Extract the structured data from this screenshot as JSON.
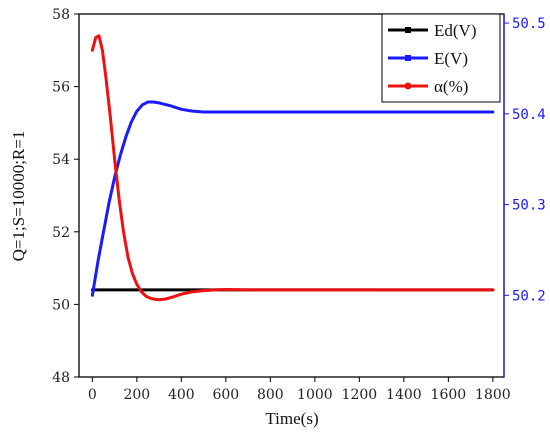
{
  "chart_data": {
    "type": "line",
    "xlabel": "Time(s)",
    "ylabel": "Q=1;S=10000;R=1",
    "xlim": [
      -60,
      1850
    ],
    "xticks": [
      0,
      200,
      400,
      600,
      800,
      1000,
      1200,
      1400,
      1600,
      1800
    ],
    "ylim_left": [
      48,
      58
    ],
    "yticks_left": [
      48,
      50,
      52,
      54,
      56,
      58
    ],
    "ylim_right": [
      50.11,
      50.51
    ],
    "yticks_right": [
      50.2,
      50.3,
      50.4,
      50.5
    ],
    "right_axis_color": "#1a1aff",
    "grid": false,
    "legend_position": "top-right",
    "series": [
      {
        "name": "Ed(V)",
        "color": "#000000",
        "axis": "left",
        "x": [
          0,
          200,
          400,
          600,
          800,
          1000,
          1200,
          1400,
          1600,
          1800
        ],
        "y": [
          50.4,
          50.4,
          50.4,
          50.4,
          50.4,
          50.4,
          50.4,
          50.4,
          50.4,
          50.4
        ]
      },
      {
        "name": "E(V)",
        "color": "#1a1aff",
        "axis": "right",
        "x": [
          0,
          25,
          50,
          75,
          100,
          125,
          150,
          175,
          200,
          225,
          250,
          275,
          300,
          350,
          400,
          450,
          500,
          600,
          800,
          1000,
          1200,
          1400,
          1600,
          1800
        ],
        "y": [
          50.2,
          50.237,
          50.27,
          50.302,
          50.33,
          50.354,
          50.374,
          50.391,
          50.403,
          50.41,
          50.413,
          50.413,
          50.412,
          50.409,
          50.405,
          50.403,
          50.402,
          50.402,
          50.402,
          50.402,
          50.402,
          50.402,
          50.402,
          50.402
        ]
      },
      {
        "name": "α(%)",
        "color": "#ee1111",
        "axis": "left",
        "x": [
          0,
          15,
          30,
          45,
          60,
          80,
          100,
          120,
          140,
          160,
          180,
          200,
          220,
          240,
          260,
          280,
          300,
          330,
          360,
          400,
          450,
          500,
          550,
          600,
          700,
          800,
          1000,
          1200,
          1400,
          1600,
          1800
        ],
        "y": [
          57.0,
          57.35,
          57.4,
          57.0,
          56.3,
          55.2,
          54.0,
          52.9,
          52.0,
          51.3,
          50.85,
          50.55,
          50.35,
          50.23,
          50.17,
          50.14,
          50.13,
          50.15,
          50.2,
          50.28,
          50.35,
          50.38,
          50.4,
          50.41,
          50.4,
          50.4,
          50.4,
          50.4,
          50.4,
          50.4,
          50.4
        ]
      }
    ]
  }
}
